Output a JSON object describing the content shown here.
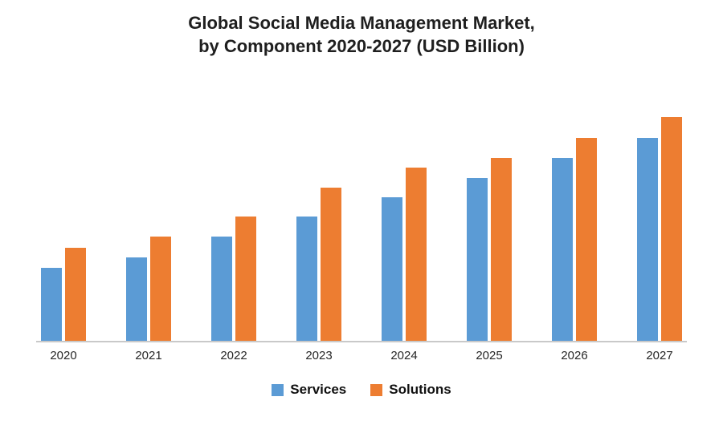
{
  "title": {
    "line1": "Global Social Media Management Market,",
    "line2": "by Component 2020-2027 (USD Billion)"
  },
  "chart_data": {
    "type": "bar",
    "title": "Global Social Media Management Market, by Component 2020-2027 (USD Billion)",
    "categories": [
      "2020",
      "2021",
      "2022",
      "2023",
      "2024",
      "2025",
      "2026",
      "2027"
    ],
    "series": [
      {
        "name": "Services",
        "color": "#5B9BD5",
        "values": [
          9.0,
          10.3,
          12.9,
          15.4,
          17.7,
          20.1,
          22.6,
          25.1
        ]
      },
      {
        "name": "Solutions",
        "color": "#ED7D31",
        "values": [
          11.5,
          12.9,
          15.4,
          18.9,
          21.4,
          22.6,
          25.1,
          27.6
        ]
      }
    ],
    "xlabel": "",
    "ylabel": "",
    "ylim": [
      0,
      32
    ],
    "grid": false,
    "y_axis_ticks_visible": false,
    "axis_line_color": "#c9c9c9",
    "legend_position": "bottom-center"
  }
}
